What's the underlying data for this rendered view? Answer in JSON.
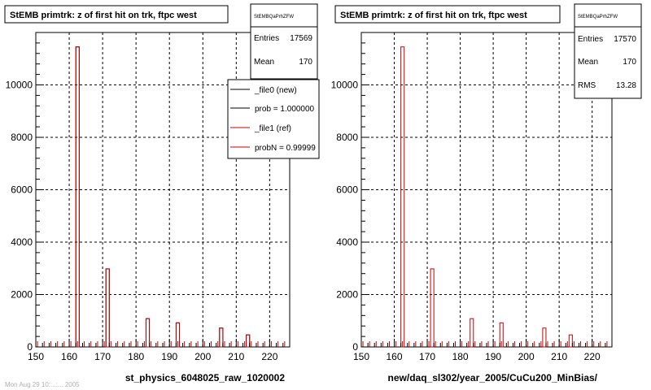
{
  "footer_text": "Mon Aug 29 10:...:... 2005",
  "chart_data": [
    {
      "type": "bar",
      "title": "StEMB primtrk: z of first hit on trk, ftpc west",
      "xlabel": "st_physics_6048025_raw_1020002",
      "ylabel": "",
      "xlim": [
        150,
        226
      ],
      "ylim": [
        0,
        12000
      ],
      "x_ticks": [
        150,
        160,
        170,
        180,
        190,
        200,
        210,
        220
      ],
      "y_ticks": [
        0,
        2000,
        4000,
        6000,
        8000,
        10000
      ],
      "grid": true,
      "bin_width": 1,
      "series": [
        {
          "name": "_file0 (new)",
          "color": "#000000",
          "x": [
            162.5,
            171.5,
            183.5,
            192.5,
            205.5,
            213.5
          ],
          "values": [
            11450,
            2980,
            1080,
            920,
            720,
            460
          ]
        },
        {
          "name": "_file1 (ref)",
          "color": "#cc0000",
          "x": [
            162.5,
            171.5,
            183.5,
            192.5,
            205.5,
            213.5
          ],
          "values": [
            11450,
            2980,
            1080,
            920,
            720,
            460
          ]
        }
      ],
      "stats": {
        "name": "StEMBQaPrhZFW",
        "entries_label": "Entries",
        "entries": "17569",
        "mean_label": "Mean",
        "mean": "170",
        "rms_label": "",
        "rms": ""
      },
      "legend": {
        "position": "top-right",
        "entries": [
          {
            "label": "_file0 (new)",
            "color": "#000000"
          },
          {
            "label": "prob = 1.000000",
            "color": "#000000"
          },
          {
            "label": "_file1 (ref)",
            "color": "#cc0000"
          },
          {
            "label": "probN = 0.99999",
            "color": "#cc0000"
          }
        ]
      }
    },
    {
      "type": "bar",
      "title": "StEMB primtrk: z of first hit on trk, ftpc west",
      "xlabel": "new/daq_sl302/year_2005/CuCu200_MinBias/",
      "ylabel": "",
      "xlim": [
        150,
        226
      ],
      "ylim": [
        0,
        12000
      ],
      "x_ticks": [
        150,
        160,
        170,
        180,
        190,
        200,
        210,
        220
      ],
      "y_ticks": [
        0,
        2000,
        4000,
        6000,
        8000,
        10000
      ],
      "grid": true,
      "bin_width": 1,
      "series": [
        {
          "name": "",
          "color": "#cc0000",
          "x": [
            162.5,
            171.5,
            183.5,
            192.5,
            205.5,
            213.5
          ],
          "values": [
            11450,
            2980,
            1080,
            920,
            720,
            460
          ]
        }
      ],
      "stats": {
        "name": "StEMBQaPrhZFW",
        "entries_label": "Entries",
        "entries": "17570",
        "mean_label": "Mean",
        "mean": "170",
        "rms_label": "RMS",
        "rms": "13.28"
      },
      "legend": null
    }
  ]
}
